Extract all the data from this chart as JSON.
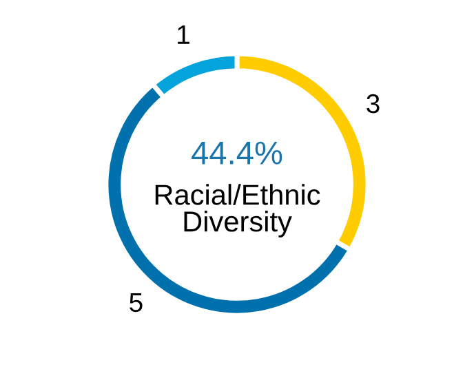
{
  "chart_data": {
    "type": "donut",
    "categories": [
      null,
      null,
      null
    ],
    "values": [
      3,
      5,
      1
    ],
    "colors": [
      "#ffcc00",
      "#0071ad",
      "#05a3db"
    ],
    "data_labels": true,
    "annotations": [
      "44.4%",
      "Racial/Ethnic\nDiversity"
    ]
  }
}
